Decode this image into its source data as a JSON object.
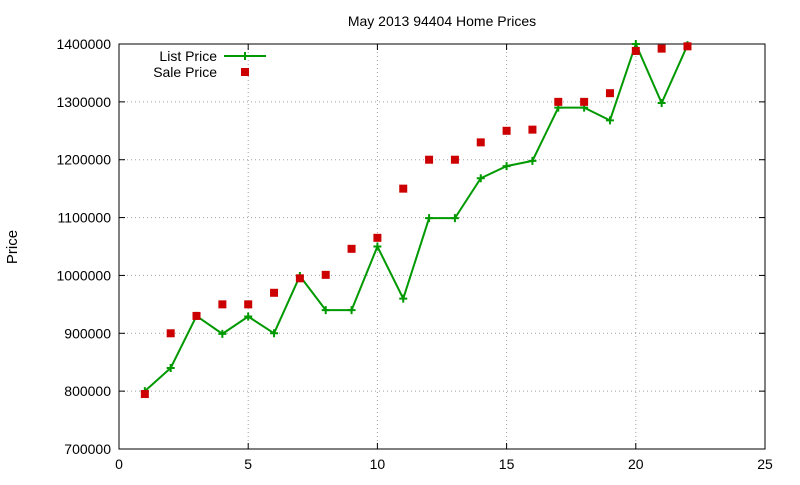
{
  "chart_data": {
    "type": "line",
    "title": "May 2013 94404 Home Prices",
    "xlabel": "",
    "ylabel": "Price",
    "xlim": [
      0,
      25
    ],
    "ylim": [
      700000,
      1400000
    ],
    "x_ticks": [
      0,
      5,
      10,
      15,
      20,
      25
    ],
    "y_ticks": [
      700000,
      800000,
      900000,
      1000000,
      1100000,
      1200000,
      1300000,
      1400000
    ],
    "grid": true,
    "legend_position": "top-left",
    "series": [
      {
        "name": "List Price",
        "style": "line-plus",
        "color": "#009900",
        "x": [
          1,
          2,
          3,
          4,
          5,
          6,
          7,
          8,
          9,
          10,
          11,
          12,
          13,
          14,
          15,
          16,
          17,
          18,
          19,
          20,
          21,
          22
        ],
        "y": [
          800000,
          840000,
          930000,
          899000,
          929000,
          900000,
          999000,
          940000,
          940000,
          1050000,
          960000,
          1099000,
          1099000,
          1168000,
          1189000,
          1198000,
          1290000,
          1290000,
          1268000,
          1400000,
          1298000,
          1398000
        ]
      },
      {
        "name": "Sale Price",
        "style": "square-marker",
        "color": "#cc0000",
        "x": [
          1,
          2,
          3,
          4,
          5,
          6,
          7,
          8,
          9,
          10,
          11,
          12,
          13,
          14,
          15,
          16,
          17,
          18,
          19,
          20,
          21,
          22
        ],
        "y": [
          795000,
          900000,
          930000,
          950000,
          950000,
          970000,
          995000,
          1001000,
          1046000,
          1065000,
          1150000,
          1200000,
          1200000,
          1230000,
          1250000,
          1252000,
          1300000,
          1300000,
          1315000,
          1388000,
          1392000,
          1396000
        ]
      }
    ]
  }
}
